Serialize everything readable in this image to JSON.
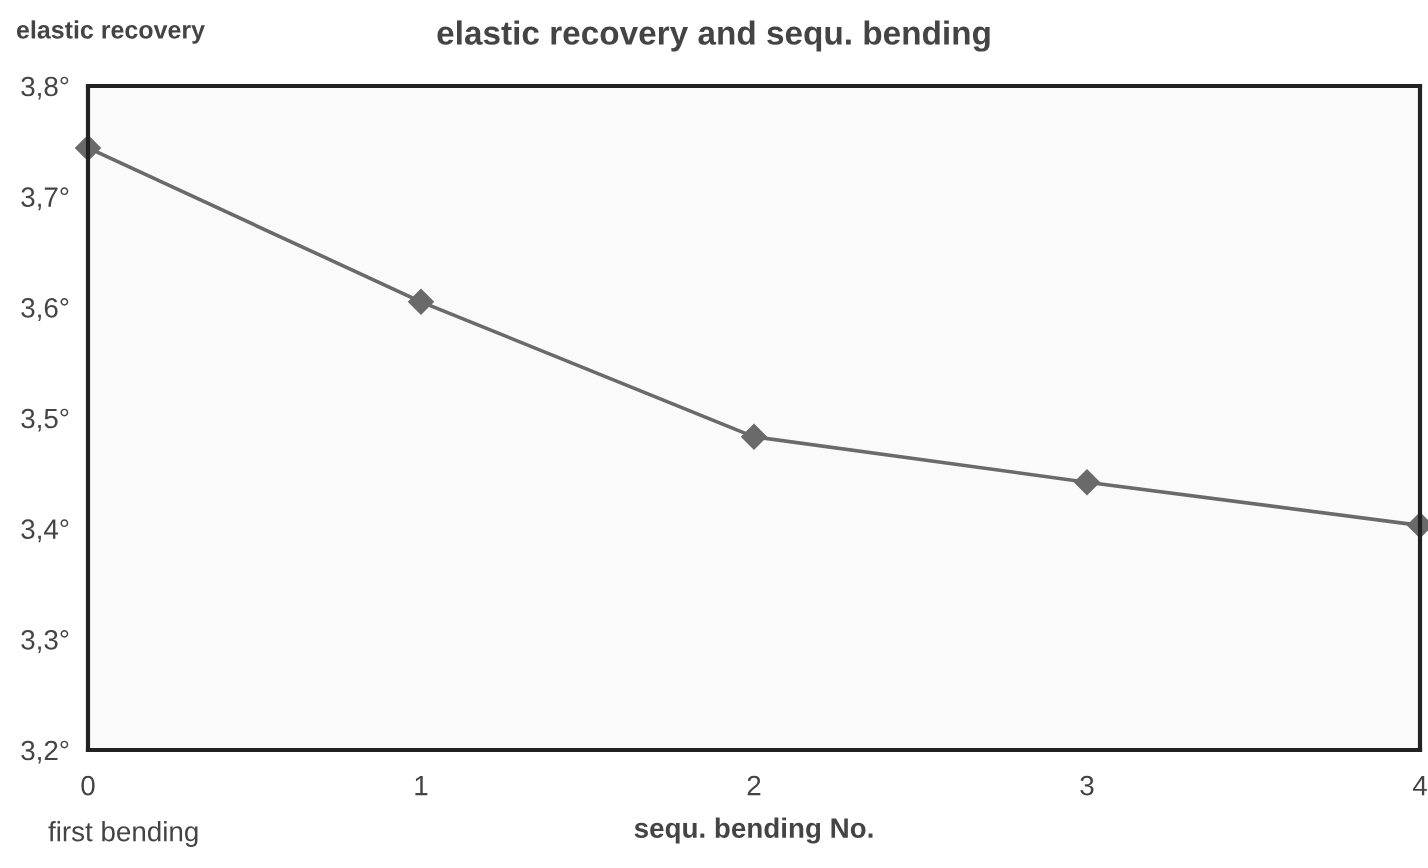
{
  "chart_data": {
    "type": "line",
    "title": "elastic recovery and sequ. bending",
    "xlabel": "sequ. bending No.",
    "ylabel": "elastic recovery",
    "annotations": [
      "first bending"
    ],
    "x": [
      0,
      1,
      2,
      3,
      4
    ],
    "series": [
      {
        "color": "#6a6a6a",
        "values": [
          3.744,
          3.605,
          3.483,
          3.442,
          3.403
        ]
      }
    ],
    "xlim": [
      0,
      4
    ],
    "xticks": [
      0,
      1,
      2,
      3,
      4
    ],
    "ylim": [
      3.2,
      3.8
    ],
    "yticks": [
      {
        "value": 3.2,
        "label": "3,2°"
      },
      {
        "value": 3.3,
        "label": "3,3°"
      },
      {
        "value": 3.4,
        "label": "3,4°"
      },
      {
        "value": 3.5,
        "label": "3,5°"
      },
      {
        "value": 3.6,
        "label": "3,6°"
      },
      {
        "value": 3.7,
        "label": "3,7°"
      },
      {
        "value": 3.8,
        "label": "3,8°"
      }
    ],
    "grid": false,
    "legend": false,
    "marker": "diamond",
    "line_style": "solid"
  }
}
